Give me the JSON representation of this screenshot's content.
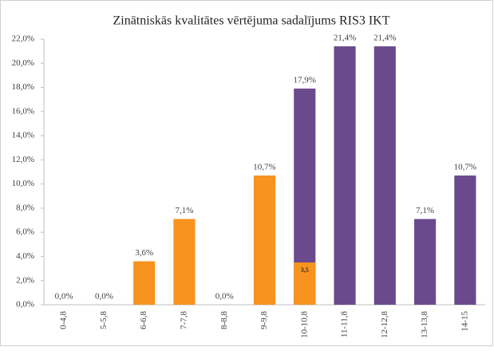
{
  "chart_data": {
    "type": "bar",
    "title": "Zinātniskās kvalitātes vērtējuma sadalījums RIS3 IKT",
    "categories": [
      "0-4,8",
      "5-5,8",
      "6-6,8",
      "7-7,8",
      "8-8,8",
      "9-9,8",
      "10-10,8",
      "11-11,8",
      "12-12,8",
      "13-13,8",
      "14-15"
    ],
    "series": [
      {
        "color": "#6a4a8c",
        "values": [
          null,
          null,
          null,
          null,
          null,
          null,
          17.9,
          21.4,
          21.4,
          7.1,
          10.7
        ],
        "value_labels": [
          null,
          null,
          null,
          null,
          null,
          null,
          "17,9%",
          "21,4%",
          "21,4%",
          "7,1%",
          "10,7%"
        ]
      },
      {
        "color": "#f7931e",
        "values": [
          0,
          0,
          3.6,
          7.1,
          0,
          10.7,
          3.5,
          null,
          null,
          null,
          null
        ],
        "value_labels": [
          "0,0%",
          "0,0%",
          "3,6%",
          "7,1%",
          "0,0%",
          "10,7%",
          "3,5",
          null,
          null,
          null,
          null
        ]
      }
    ],
    "ylim": [
      0,
      22
    ],
    "yticks": [
      {
        "value": 0,
        "label": "0,0%"
      },
      {
        "value": 2,
        "label": "2,0%"
      },
      {
        "value": 4,
        "label": "4,0%"
      },
      {
        "value": 6,
        "label": "6,0%"
      },
      {
        "value": 8,
        "label": "8,0%"
      },
      {
        "value": 10,
        "label": "10,0%"
      },
      {
        "value": 12,
        "label": "12,0%"
      },
      {
        "value": 14,
        "label": "14,0%"
      },
      {
        "value": 16,
        "label": "16,0%"
      },
      {
        "value": 18,
        "label": "18,0%"
      },
      {
        "value": 20,
        "label": "20,0%"
      },
      {
        "value": 22,
        "label": "22,0%"
      }
    ],
    "grid": false
  }
}
